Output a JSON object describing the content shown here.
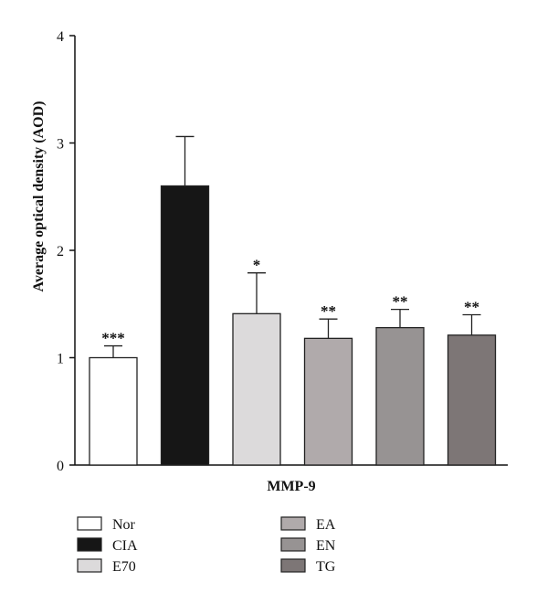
{
  "chart_data": {
    "type": "bar",
    "title": "",
    "xlabel": "MMP-9",
    "ylabel": "Average optical density (AOD)",
    "ylim": [
      0,
      4
    ],
    "yticks": [
      "0",
      "1",
      "2",
      "3",
      "4"
    ],
    "grid": false,
    "legend_position": "bottom",
    "categories": [
      "Nor",
      "CIA",
      "E70",
      "EA",
      "EN",
      "TG"
    ],
    "values": [
      1.0,
      2.6,
      1.41,
      1.18,
      1.28,
      1.21
    ],
    "errors": [
      0.11,
      0.46,
      0.38,
      0.18,
      0.17,
      0.19
    ],
    "significance": [
      "***",
      "",
      "*",
      "**",
      "**",
      "**"
    ],
    "colors": [
      "#ffffff",
      "#161616",
      "#dcdadb",
      "#b0aaab",
      "#979393",
      "#7d7676"
    ]
  }
}
